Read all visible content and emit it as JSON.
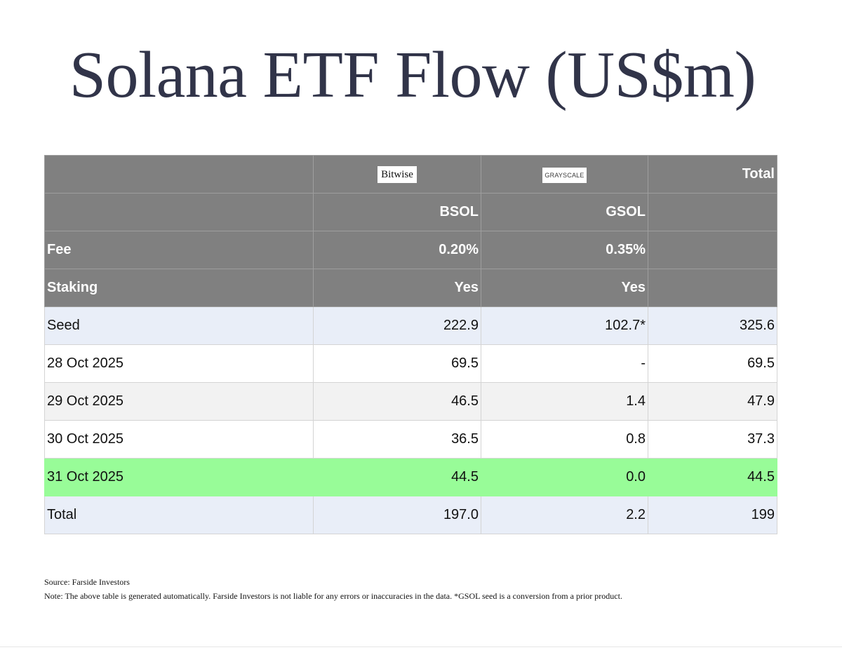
{
  "title": "Solana ETF Flow (US$m)",
  "colors": {
    "title": "#313449",
    "header_bg": "#808080",
    "row_blue": "#e9eef8",
    "row_gray": "#f2f2f2",
    "row_highlight": "#98fc98"
  },
  "table": {
    "header": {
      "issuer_logos": {
        "bsol": "Bitwise",
        "gsol": "GRAYSCALE"
      },
      "total_label": "Total",
      "tickers": {
        "bsol": "BSOL",
        "gsol": "GSOL"
      },
      "fee": {
        "label": "Fee",
        "bsol": "0.20%",
        "gsol": "0.35%"
      },
      "staking": {
        "label": "Staking",
        "bsol": "Yes",
        "gsol": "Yes"
      }
    },
    "rows": [
      {
        "label": "Seed",
        "bsol": "222.9",
        "gsol": "102.7*",
        "total": "325.6"
      },
      {
        "label": "28 Oct 2025",
        "bsol": "69.5",
        "gsol": "-",
        "total": "69.5"
      },
      {
        "label": "29 Oct 2025",
        "bsol": "46.5",
        "gsol": "1.4",
        "total": "47.9"
      },
      {
        "label": "30 Oct 2025",
        "bsol": "36.5",
        "gsol": "0.8",
        "total": "37.3"
      },
      {
        "label": "31 Oct 2025",
        "bsol": "44.5",
        "gsol": "0.0",
        "total": "44.5"
      },
      {
        "label": "Total",
        "bsol": "197.0",
        "gsol": "2.2",
        "total": "199"
      }
    ]
  },
  "footnotes": {
    "source": "Source: Farside Investors",
    "note": "Note: The above table is generated automatically. Farside Investors is not liable for any errors or inaccuracies in the data. *GSOL seed is a conversion from a prior product."
  }
}
